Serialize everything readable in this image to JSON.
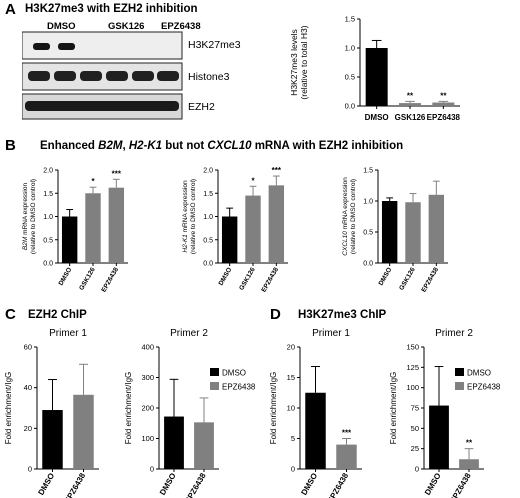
{
  "panels": {
    "A": {
      "letter": "A",
      "title": "H3K27me3 with EZH2 inhibition"
    },
    "B": {
      "letter": "B",
      "title_parts": [
        "Enhanced ",
        "B2M",
        ", ",
        "H2-K1",
        " but not ",
        "CXCL10",
        " mRNA with EZH2 inhibition"
      ]
    },
    "C": {
      "letter": "C",
      "title": "EZH2 ChIP"
    },
    "D": {
      "letter": "D",
      "title": "H3K27me3 ChIP"
    }
  },
  "blot": {
    "lanes": [
      "DMSO",
      "GSK126",
      "EPZ6438"
    ],
    "rows": [
      "H3K27me3",
      "Histone3",
      "EZH2"
    ]
  },
  "legend": {
    "items": [
      {
        "label": "DMSO",
        "color": "#000000"
      },
      {
        "label": "EPZ6438",
        "color": "#808080"
      }
    ]
  },
  "chart_data": [
    {
      "id": "A-bar",
      "type": "bar",
      "categories": [
        "DMSO",
        "GSK126",
        "EPZ6438"
      ],
      "values": [
        1.0,
        0.05,
        0.06
      ],
      "errors": [
        0.13,
        0.03,
        0.02
      ],
      "colors": [
        "#000000",
        "#808080",
        "#808080"
      ],
      "sig": [
        "",
        "**",
        "**"
      ],
      "ylabel": "H3K27me3 levels\n(relative to total H3)",
      "ylim": [
        0,
        1.5
      ],
      "yticks": [
        "0.0",
        "0.5",
        "1.0",
        "1.5"
      ]
    },
    {
      "id": "B-1",
      "type": "bar",
      "categories": [
        "DMSO",
        "GSK126",
        "EPZ6438"
      ],
      "values": [
        1.0,
        1.5,
        1.62
      ],
      "errors": [
        0.15,
        0.13,
        0.18
      ],
      "colors": [
        "#000000",
        "#808080",
        "#808080"
      ],
      "sig": [
        "",
        "*",
        "***"
      ],
      "ylabel_italic": "B2M",
      "ylabel_rest": " mRNA expression",
      "ylabel2": "(relative to DMSO control)",
      "ylim": [
        0,
        2.0
      ],
      "yticks": [
        "0.0",
        "0.5",
        "1.0",
        "1.5",
        "2.0"
      ]
    },
    {
      "id": "B-2",
      "type": "bar",
      "categories": [
        "DMSO",
        "GSK126",
        "EPZ6438"
      ],
      "values": [
        1.0,
        1.45,
        1.67
      ],
      "errors": [
        0.18,
        0.2,
        0.2
      ],
      "colors": [
        "#000000",
        "#808080",
        "#808080"
      ],
      "sig": [
        "",
        "*",
        "***"
      ],
      "ylabel_italic": "H2-K1",
      "ylabel_rest": " mRNA expression",
      "ylabel2": "(relative to DMSO control)",
      "ylim": [
        0,
        2.0
      ],
      "yticks": [
        "0.0",
        "0.5",
        "1.0",
        "1.5",
        "2.0"
      ]
    },
    {
      "id": "B-3",
      "type": "bar",
      "categories": [
        "DMSO",
        "GSK126",
        "EPZ6438"
      ],
      "values": [
        1.0,
        0.98,
        1.1
      ],
      "errors": [
        0.05,
        0.14,
        0.22
      ],
      "colors": [
        "#000000",
        "#808080",
        "#808080"
      ],
      "sig": [
        "",
        "",
        ""
      ],
      "ylabel_italic": "CXCL10",
      "ylabel_rest": " mRNA expression",
      "ylabel2": "(relative to DMSO control)",
      "ylim": [
        0,
        1.5
      ],
      "yticks": [
        "0.0",
        "0.5",
        "1.0",
        "1.5"
      ]
    },
    {
      "id": "C-1",
      "type": "bar",
      "title": "Primer 1",
      "categories": [
        "DMSO",
        "EPZ6438"
      ],
      "values": [
        29,
        36.5
      ],
      "errors": [
        15,
        15
      ],
      "colors": [
        "#000000",
        "#808080"
      ],
      "sig": [
        "",
        ""
      ],
      "ylabel": "Fold enrichment/IgG",
      "ylim": [
        0,
        60
      ],
      "yticks": [
        "0",
        "20",
        "40",
        "60"
      ]
    },
    {
      "id": "C-2",
      "type": "bar",
      "title": "Primer 2",
      "categories": [
        "DMSO",
        "EPZ6438"
      ],
      "values": [
        172,
        153
      ],
      "errors": [
        122,
        80
      ],
      "colors": [
        "#000000",
        "#808080"
      ],
      "sig": [
        "",
        ""
      ],
      "ylabel": "Fold enrichment/IgG",
      "ylim": [
        0,
        400
      ],
      "yticks": [
        "0",
        "100",
        "200",
        "300",
        "400"
      ]
    },
    {
      "id": "D-1",
      "type": "bar",
      "title": "Primer 1",
      "categories": [
        "DMSO",
        "EPZ6438"
      ],
      "values": [
        12.5,
        4
      ],
      "errors": [
        4.3,
        1
      ],
      "colors": [
        "#000000",
        "#808080"
      ],
      "sig": [
        "",
        "***"
      ],
      "ylabel": "Fold enrichment/IgG",
      "ylim": [
        0,
        20
      ],
      "yticks": [
        "0",
        "5",
        "10",
        "15",
        "20"
      ]
    },
    {
      "id": "D-2",
      "type": "bar",
      "title": "Primer 2",
      "categories": [
        "DMSO",
        "EPZ6438"
      ],
      "values": [
        78,
        12
      ],
      "errors": [
        48,
        13
      ],
      "colors": [
        "#000000",
        "#808080"
      ],
      "sig": [
        "",
        "**"
      ],
      "ylabel": "Fold enrichment/IgG",
      "ylim": [
        0,
        150
      ],
      "yticks": [
        "0",
        "25",
        "50",
        "75",
        "100",
        "125",
        "150"
      ]
    }
  ]
}
